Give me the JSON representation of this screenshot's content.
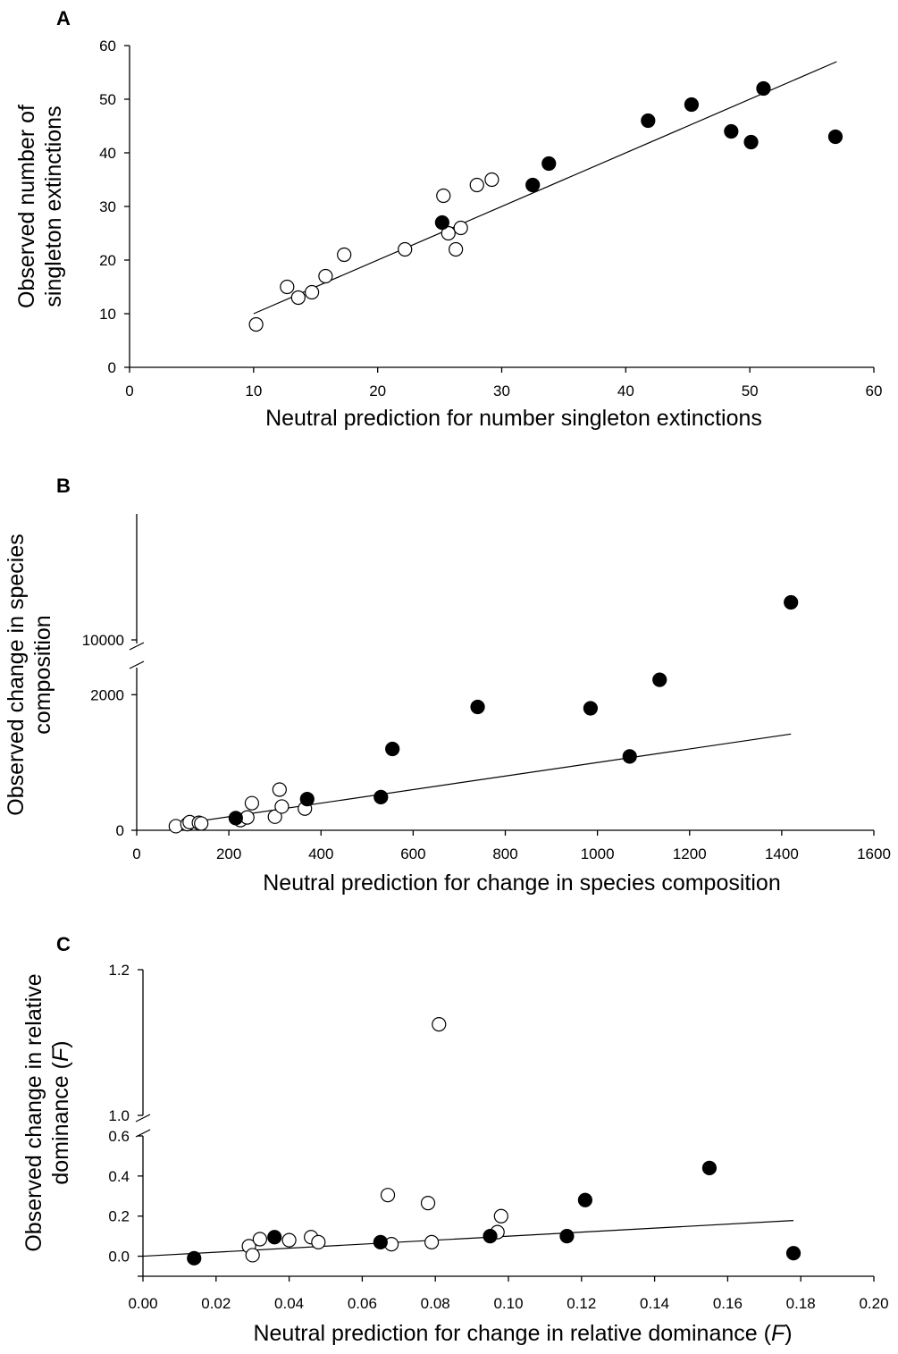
{
  "chart_data": [
    {
      "panel": "A",
      "type": "scatter",
      "xlabel": "Neutral prediction for number singleton extinctions",
      "ylabel": [
        "Observed number of",
        "singleton extinctions"
      ],
      "xlim": [
        0,
        60
      ],
      "ylim": [
        0,
        60
      ],
      "x_ticks": [
        "0",
        "10",
        "20",
        "30",
        "40",
        "50",
        "60"
      ],
      "y_ticks": [
        "0",
        "10",
        "20",
        "30",
        "40",
        "50",
        "60"
      ],
      "grid": false,
      "fit_line": {
        "x": [
          10,
          57
        ],
        "y": [
          10,
          57
        ]
      },
      "series": [
        {
          "marker": "filled",
          "points": [
            [
              25.2,
              27
            ],
            [
              32.5,
              34
            ],
            [
              33.8,
              38
            ],
            [
              41.8,
              46
            ],
            [
              45.3,
              49
            ],
            [
              48.5,
              44
            ],
            [
              50.1,
              42
            ],
            [
              51.1,
              52
            ],
            [
              56.9,
              43
            ]
          ]
        },
        {
          "marker": "open",
          "points": [
            [
              10.2,
              8
            ],
            [
              12.7,
              15
            ],
            [
              13.6,
              13
            ],
            [
              14.7,
              14
            ],
            [
              15.8,
              17
            ],
            [
              17.3,
              21
            ],
            [
              22.2,
              22
            ],
            [
              25.3,
              32
            ],
            [
              25.7,
              25
            ],
            [
              26.3,
              22
            ],
            [
              26.7,
              26
            ],
            [
              28.0,
              34
            ],
            [
              29.2,
              35
            ]
          ]
        }
      ]
    },
    {
      "panel": "B",
      "type": "scatter",
      "xlabel": "Neutral prediction for change in species composition",
      "ylabel": [
        "Observed  change in species",
        "composition"
      ],
      "xlim": [
        0,
        1600
      ],
      "ylim": [
        0,
        2400
      ],
      "y_upper_range": [
        9800,
        10600
      ],
      "axis_break": true,
      "x_ticks": [
        "0",
        "200",
        "400",
        "600",
        "800",
        "1000",
        "1200",
        "1400",
        "1600"
      ],
      "y_ticks": [
        "0",
        "2000"
      ],
      "y_upper_ticks": [
        "10000"
      ],
      "grid": false,
      "fit_line": {
        "x": [
          100,
          1420
        ],
        "y": [
          100,
          1420
        ]
      },
      "series": [
        {
          "marker": "filled",
          "points": [
            [
              215,
              180
            ],
            [
              370,
              460
            ],
            [
              530,
              490
            ],
            [
              555,
              1200
            ],
            [
              740,
              1820
            ],
            [
              985,
              1800
            ],
            [
              1070,
              1090
            ],
            [
              1135,
              2220
            ]
          ]
        },
        {
          "marker": "open",
          "points": [
            [
              85,
              60
            ],
            [
              110,
              90
            ],
            [
              115,
              120
            ],
            [
              135,
              110
            ],
            [
              140,
              100
            ],
            [
              225,
              150
            ],
            [
              240,
              190
            ],
            [
              250,
              400
            ],
            [
              300,
              200
            ],
            [
              310,
              600
            ],
            [
              315,
              350
            ],
            [
              365,
              320
            ]
          ]
        }
      ],
      "upper_points": [
        {
          "marker": "filled",
          "x": 1420,
          "y": 10280
        }
      ]
    },
    {
      "panel": "C",
      "type": "scatter",
      "xlabel": "Neutral prediction for change in relative dominance (F)",
      "ylabel": [
        "Observed change in relative",
        "dominance (F)"
      ],
      "xlim": [
        0.0,
        0.2
      ],
      "ylim": [
        -0.1,
        0.6
      ],
      "y_upper_range": [
        1.0,
        1.2
      ],
      "axis_break": true,
      "x_ticks": [
        "0.00",
        "0.02",
        "0.04",
        "0.06",
        "0.08",
        "0.10",
        "0.12",
        "0.14",
        "0.16",
        "0.18",
        "0.20"
      ],
      "y_ticks": [
        "0.0",
        "0.2",
        "0.4",
        "0.6"
      ],
      "y_upper_ticks": [
        "1.0",
        "1.2"
      ],
      "grid": false,
      "fit_line": {
        "x": [
          0.0,
          0.178
        ],
        "y": [
          0.0,
          0.178
        ]
      },
      "series": [
        {
          "marker": "filled",
          "points": [
            [
              0.014,
              -0.01
            ],
            [
              0.036,
              0.095
            ],
            [
              0.065,
              0.07
            ],
            [
              0.095,
              0.1
            ],
            [
              0.116,
              0.1
            ],
            [
              0.121,
              0.28
            ],
            [
              0.155,
              0.44
            ],
            [
              0.178,
              0.015
            ]
          ]
        },
        {
          "marker": "open",
          "points": [
            [
              0.029,
              0.05
            ],
            [
              0.03,
              0.005
            ],
            [
              0.032,
              0.085
            ],
            [
              0.04,
              0.08
            ],
            [
              0.046,
              0.095
            ],
            [
              0.048,
              0.07
            ],
            [
              0.067,
              0.305
            ],
            [
              0.068,
              0.06
            ],
            [
              0.078,
              0.265
            ],
            [
              0.079,
              0.07
            ],
            [
              0.097,
              0.12
            ],
            [
              0.098,
              0.2
            ]
          ]
        }
      ],
      "upper_points": [
        {
          "marker": "open",
          "x": 0.081,
          "y": 1.125
        }
      ]
    }
  ]
}
